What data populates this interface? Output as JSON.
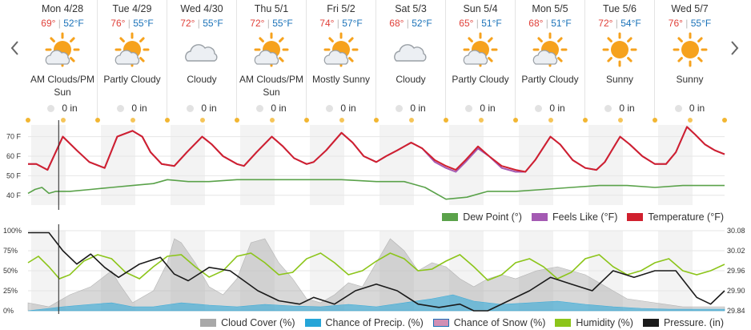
{
  "navigation": {
    "prev_icon": "chevron-left-icon",
    "next_icon": "chevron-right-icon"
  },
  "days": [
    {
      "date": "Mon 4/28",
      "hi": "69°",
      "lo": "52°F",
      "icon": "sun-cloud-icon",
      "cond": "AM Clouds/PM Sun",
      "precip": "0 in"
    },
    {
      "date": "Tue 4/29",
      "hi": "76°",
      "lo": "55°F",
      "icon": "sun-cloud-icon",
      "cond": "Partly Cloudy",
      "precip": "0 in"
    },
    {
      "date": "Wed 4/30",
      "hi": "72°",
      "lo": "55°F",
      "icon": "cloud-icon",
      "cond": "Cloudy",
      "precip": "0 in"
    },
    {
      "date": "Thu 5/1",
      "hi": "72°",
      "lo": "55°F",
      "icon": "sun-cloud-icon",
      "cond": "AM Clouds/PM Sun",
      "precip": "0 in"
    },
    {
      "date": "Fri 5/2",
      "hi": "74°",
      "lo": "57°F",
      "icon": "sun-cloud-icon",
      "cond": "Mostly Sunny",
      "precip": "0 in"
    },
    {
      "date": "Sat 5/3",
      "hi": "68°",
      "lo": "52°F",
      "icon": "cloud-icon",
      "cond": "Cloudy",
      "precip": "0 in"
    },
    {
      "date": "Sun 5/4",
      "hi": "65°",
      "lo": "51°F",
      "icon": "sun-cloud-icon",
      "cond": "Partly Cloudy",
      "precip": "0 in"
    },
    {
      "date": "Mon 5/5",
      "hi": "68°",
      "lo": "51°F",
      "icon": "sun-cloud-icon",
      "cond": "Partly Cloudy",
      "precip": "0 in"
    },
    {
      "date": "Tue 5/6",
      "hi": "72°",
      "lo": "54°F",
      "icon": "sun-icon",
      "cond": "Sunny",
      "precip": "0 in"
    },
    {
      "date": "Wed 5/7",
      "hi": "76°",
      "lo": "55°F",
      "icon": "sun-icon",
      "cond": "Sunny",
      "precip": "0 in"
    }
  ],
  "colors": {
    "temperature": "#d0202e",
    "feels_like": "#a45ab3",
    "dew_point": "#5aa24a",
    "cloud_cover": "#a8a8a8",
    "precip": "#25a5d8",
    "snow": "#d08fb5",
    "humidity": "#8cc51a",
    "pressure": "#1a1a1a",
    "high": "#e0413a",
    "low": "#1a72b8",
    "sun": "#f6a21d"
  },
  "chart_data": [
    {
      "type": "line",
      "x_unit": "days from Mon 4/28 00:00",
      "xlim": [
        0,
        10
      ],
      "ylim": [
        35,
        76
      ],
      "y_ticks": [
        "70 F",
        "60 F",
        "50 F",
        "40 F"
      ],
      "y_tick_values": [
        70,
        60,
        50,
        40
      ],
      "current_time": 0.44,
      "series": [
        {
          "name": "Temperature (°F)",
          "key": "temp",
          "x": [
            0,
            0.12,
            0.28,
            0.5,
            0.7,
            0.88,
            1.1,
            1.28,
            1.5,
            1.64,
            1.76,
            1.92,
            2.1,
            2.28,
            2.5,
            2.64,
            2.8,
            3.0,
            3.1,
            3.28,
            3.5,
            3.66,
            3.82,
            4.0,
            4.1,
            4.28,
            4.5,
            4.66,
            4.82,
            5.0,
            5.14,
            5.3,
            5.5,
            5.66,
            5.84,
            6.0,
            6.14,
            6.28,
            6.46,
            6.62,
            6.8,
            7.0,
            7.14,
            7.28,
            7.5,
            7.64,
            7.82,
            8.0,
            8.16,
            8.28,
            8.5,
            8.64,
            8.82,
            9.0,
            9.16,
            9.3,
            9.46,
            9.58,
            9.72,
            9.86,
            10.0
          ],
          "y": [
            56,
            56,
            53,
            70,
            63,
            57,
            54,
            70,
            73,
            70,
            62,
            56,
            55,
            62,
            70,
            66,
            60,
            56,
            55,
            62,
            70,
            65,
            59,
            56,
            57,
            63,
            72,
            67,
            60,
            57,
            60,
            63,
            67,
            64,
            58,
            55,
            53,
            58,
            65,
            60,
            55,
            53,
            52,
            58,
            70,
            66,
            58,
            54,
            53,
            57,
            70,
            66,
            60,
            56,
            56,
            62,
            75,
            71,
            66,
            63,
            61
          ]
        },
        {
          "name": "Feels Like (°F)",
          "key": "feels",
          "x": [
            0,
            0.12,
            0.28,
            0.5,
            0.7,
            0.88,
            1.1,
            1.28,
            1.5,
            1.64,
            1.76,
            1.92,
            2.1,
            2.28,
            2.5,
            2.64,
            2.8,
            3.0,
            3.1,
            3.28,
            3.5,
            3.66,
            3.82,
            4.0,
            4.1,
            4.28,
            4.5,
            4.66,
            4.82,
            5.0,
            5.14,
            5.3,
            5.5,
            5.66,
            5.84,
            6.0,
            6.14,
            6.28,
            6.46,
            6.62,
            6.8,
            7.0,
            7.14,
            7.28,
            7.5,
            7.64,
            7.82,
            8.0,
            8.16,
            8.28,
            8.5,
            8.64,
            8.82,
            9.0,
            9.16,
            9.3,
            9.46,
            9.58,
            9.72,
            9.86,
            10.0
          ],
          "y": [
            56,
            56,
            53,
            70,
            63,
            57,
            54,
            70,
            73,
            70,
            62,
            56,
            55,
            62,
            70,
            66,
            60,
            56,
            55,
            62,
            70,
            65,
            59,
            56,
            57,
            63,
            72,
            67,
            60,
            57,
            60,
            63,
            67,
            64,
            57,
            54,
            52,
            57,
            64,
            60,
            54,
            52,
            52,
            58,
            70,
            66,
            58,
            54,
            53,
            57,
            70,
            66,
            60,
            56,
            56,
            62,
            75,
            71,
            66,
            63,
            61
          ]
        },
        {
          "name": "Dew Point (°)",
          "key": "dew",
          "x": [
            0,
            0.1,
            0.2,
            0.3,
            0.4,
            0.6,
            0.9,
            1.2,
            1.5,
            1.8,
            2.0,
            2.3,
            2.6,
            3.0,
            3.5,
            4.0,
            4.5,
            5.0,
            5.4,
            5.7,
            6.0,
            6.3,
            6.6,
            7.0,
            7.4,
            7.8,
            8.2,
            8.6,
            9.0,
            9.4,
            9.8,
            10.0
          ],
          "y": [
            41,
            43,
            44,
            41,
            42,
            42,
            43,
            44,
            45,
            46,
            48,
            47,
            47,
            48,
            48,
            48,
            48,
            47,
            47,
            44,
            38,
            39,
            42,
            42,
            43,
            44,
            45,
            45,
            44,
            45,
            45,
            45
          ]
        }
      ]
    },
    {
      "type": "area",
      "x_unit": "days from Mon 4/28 00:00",
      "xlim": [
        0,
        10
      ],
      "ylim": [
        0,
        100
      ],
      "y_ticks_left": [
        "100%",
        "75%",
        "50%",
        "25%",
        "0%"
      ],
      "y_tick_values_left": [
        100,
        75,
        50,
        25,
        0
      ],
      "y_ticks_right": [
        "30.08",
        "30.02",
        "29.96",
        "29.90",
        "29.84"
      ],
      "y_tick_values_right": [
        30.08,
        30.02,
        29.96,
        29.9,
        29.84
      ],
      "series": [
        {
          "name": "Cloud Cover (%)",
          "key": "cloud",
          "x": [
            0,
            0.3,
            0.6,
            0.9,
            1.2,
            1.3,
            1.5,
            1.8,
            2.0,
            2.1,
            2.2,
            2.4,
            2.6,
            2.8,
            3.0,
            3.2,
            3.4,
            3.6,
            3.8,
            4.0,
            4.2,
            4.4,
            4.6,
            4.8,
            5.0,
            5.2,
            5.4,
            5.6,
            5.8,
            6.0,
            6.2,
            6.4,
            6.6,
            6.8,
            7.0,
            7.3,
            7.6,
            8.0,
            8.3,
            8.6,
            9.0,
            9.4,
            9.8,
            10.0
          ],
          "y": [
            10,
            5,
            20,
            30,
            50,
            35,
            10,
            25,
            60,
            90,
            85,
            60,
            30,
            20,
            40,
            85,
            90,
            60,
            40,
            15,
            10,
            20,
            35,
            30,
            60,
            90,
            75,
            50,
            60,
            55,
            40,
            30,
            40,
            45,
            40,
            50,
            55,
            45,
            30,
            15,
            10,
            5,
            5,
            5
          ]
        },
        {
          "name": "Chance of Precip. (%)",
          "key": "precip",
          "x": [
            0,
            0.5,
            0.9,
            1.2,
            1.5,
            1.8,
            2.2,
            2.6,
            3.0,
            3.4,
            3.8,
            4.2,
            4.6,
            5.0,
            5.4,
            5.8,
            6.1,
            6.4,
            6.8,
            7.2,
            7.6,
            8.0,
            8.4,
            8.8,
            9.2,
            9.6,
            10.0
          ],
          "y": [
            0,
            5,
            8,
            10,
            5,
            5,
            10,
            7,
            5,
            8,
            6,
            5,
            8,
            5,
            10,
            15,
            20,
            12,
            8,
            10,
            12,
            8,
            5,
            3,
            2,
            2,
            2
          ]
        },
        {
          "name": "Chance of Snow (%)",
          "key": "snow",
          "x": [
            0,
            10
          ],
          "y": [
            0,
            0
          ]
        },
        {
          "name": "Humidity (%)",
          "key": "humidity",
          "x": [
            0,
            0.15,
            0.3,
            0.45,
            0.6,
            0.8,
            1.0,
            1.2,
            1.4,
            1.6,
            1.8,
            2.0,
            2.2,
            2.4,
            2.6,
            2.8,
            3.0,
            3.2,
            3.4,
            3.6,
            3.8,
            4.0,
            4.2,
            4.4,
            4.6,
            4.8,
            5.0,
            5.2,
            5.4,
            5.6,
            5.8,
            6.0,
            6.2,
            6.4,
            6.6,
            6.8,
            7.0,
            7.2,
            7.4,
            7.6,
            7.8,
            8.0,
            8.2,
            8.4,
            8.6,
            8.8,
            9.0,
            9.2,
            9.4,
            9.6,
            9.8,
            10.0
          ],
          "y": [
            60,
            68,
            55,
            40,
            45,
            62,
            70,
            65,
            48,
            40,
            55,
            68,
            70,
            55,
            42,
            50,
            68,
            72,
            60,
            45,
            48,
            65,
            72,
            60,
            45,
            50,
            62,
            72,
            65,
            50,
            52,
            62,
            70,
            55,
            38,
            45,
            60,
            65,
            55,
            40,
            48,
            65,
            70,
            55,
            45,
            50,
            60,
            65,
            50,
            45,
            50,
            58
          ]
        },
        {
          "name": "Pressure. (in)",
          "key": "pressure",
          "x": [
            0,
            0.3,
            0.5,
            0.7,
            0.9,
            1.1,
            1.3,
            1.6,
            1.9,
            2.1,
            2.3,
            2.6,
            2.9,
            3.1,
            3.3,
            3.6,
            3.9,
            4.1,
            4.4,
            4.7,
            5.0,
            5.3,
            5.6,
            5.9,
            6.2,
            6.4,
            6.6,
            6.9,
            7.2,
            7.5,
            7.8,
            8.1,
            8.4,
            8.7,
            9.0,
            9.3,
            9.6,
            9.8,
            10.0
          ],
          "y": [
            30.074,
            30.074,
            30.02,
            29.98,
            30.01,
            29.97,
            29.94,
            29.98,
            30.0,
            29.95,
            29.93,
            29.97,
            29.96,
            29.93,
            29.9,
            29.87,
            29.86,
            29.88,
            29.86,
            29.9,
            29.92,
            29.9,
            29.86,
            29.85,
            29.86,
            29.84,
            29.84,
            29.87,
            29.9,
            29.94,
            29.92,
            29.9,
            29.96,
            29.94,
            29.96,
            29.96,
            29.88,
            29.86,
            29.9
          ]
        }
      ]
    }
  ]
}
